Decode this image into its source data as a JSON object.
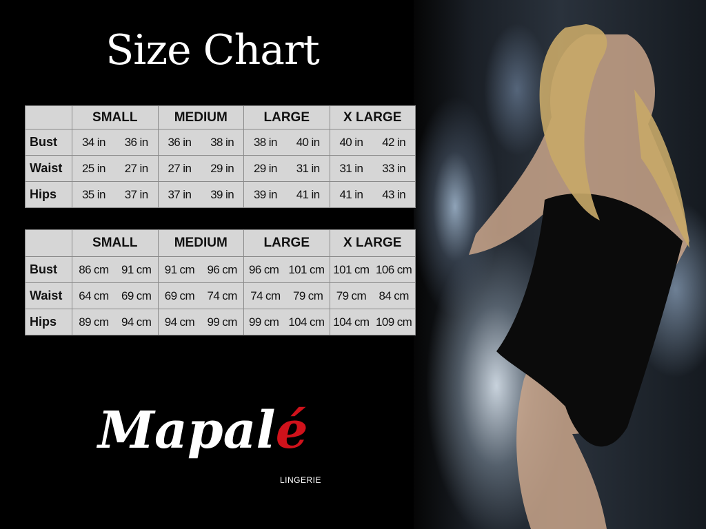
{
  "title": "Size Chart",
  "sizes": [
    "SMALL",
    "MEDIUM",
    "LARGE",
    "X LARGE"
  ],
  "inches_table": {
    "rows": [
      {
        "label": "Bust",
        "values": [
          [
            "34 in",
            "36 in"
          ],
          [
            "36 in",
            "38 in"
          ],
          [
            "38 in",
            "40 in"
          ],
          [
            "40 in",
            "42 in"
          ]
        ]
      },
      {
        "label": "Waist",
        "values": [
          [
            "25 in",
            "27 in"
          ],
          [
            "27 in",
            "29 in"
          ],
          [
            "29 in",
            "31 in"
          ],
          [
            "31 in",
            "33 in"
          ]
        ]
      },
      {
        "label": "Hips",
        "values": [
          [
            "35 in",
            "37 in"
          ],
          [
            "37 in",
            "39 in"
          ],
          [
            "39 in",
            "41 in"
          ],
          [
            "41 in",
            "43 in"
          ]
        ]
      }
    ]
  },
  "cm_table": {
    "rows": [
      {
        "label": "Bust",
        "values": [
          [
            "86 cm",
            "91 cm"
          ],
          [
            "91 cm",
            "96 cm"
          ],
          [
            "96 cm",
            "101 cm"
          ],
          [
            "101 cm",
            "106 cm"
          ]
        ]
      },
      {
        "label": "Waist",
        "values": [
          [
            "64 cm",
            "69 cm"
          ],
          [
            "69 cm",
            "74 cm"
          ],
          [
            "74 cm",
            "79 cm"
          ],
          [
            "79 cm",
            "84 cm"
          ]
        ]
      },
      {
        "label": "Hips",
        "values": [
          [
            "89 cm",
            "94 cm"
          ],
          [
            "94 cm",
            "99 cm"
          ],
          [
            "99 cm",
            "104 cm"
          ],
          [
            "104 cm",
            "109 cm"
          ]
        ]
      }
    ]
  },
  "logo": {
    "brand": "Mapalé",
    "tagline": "LINGERIE",
    "accent_color": "#d0121b"
  },
  "colors": {
    "background": "#000000",
    "table_fill": "#d6d6d6"
  }
}
